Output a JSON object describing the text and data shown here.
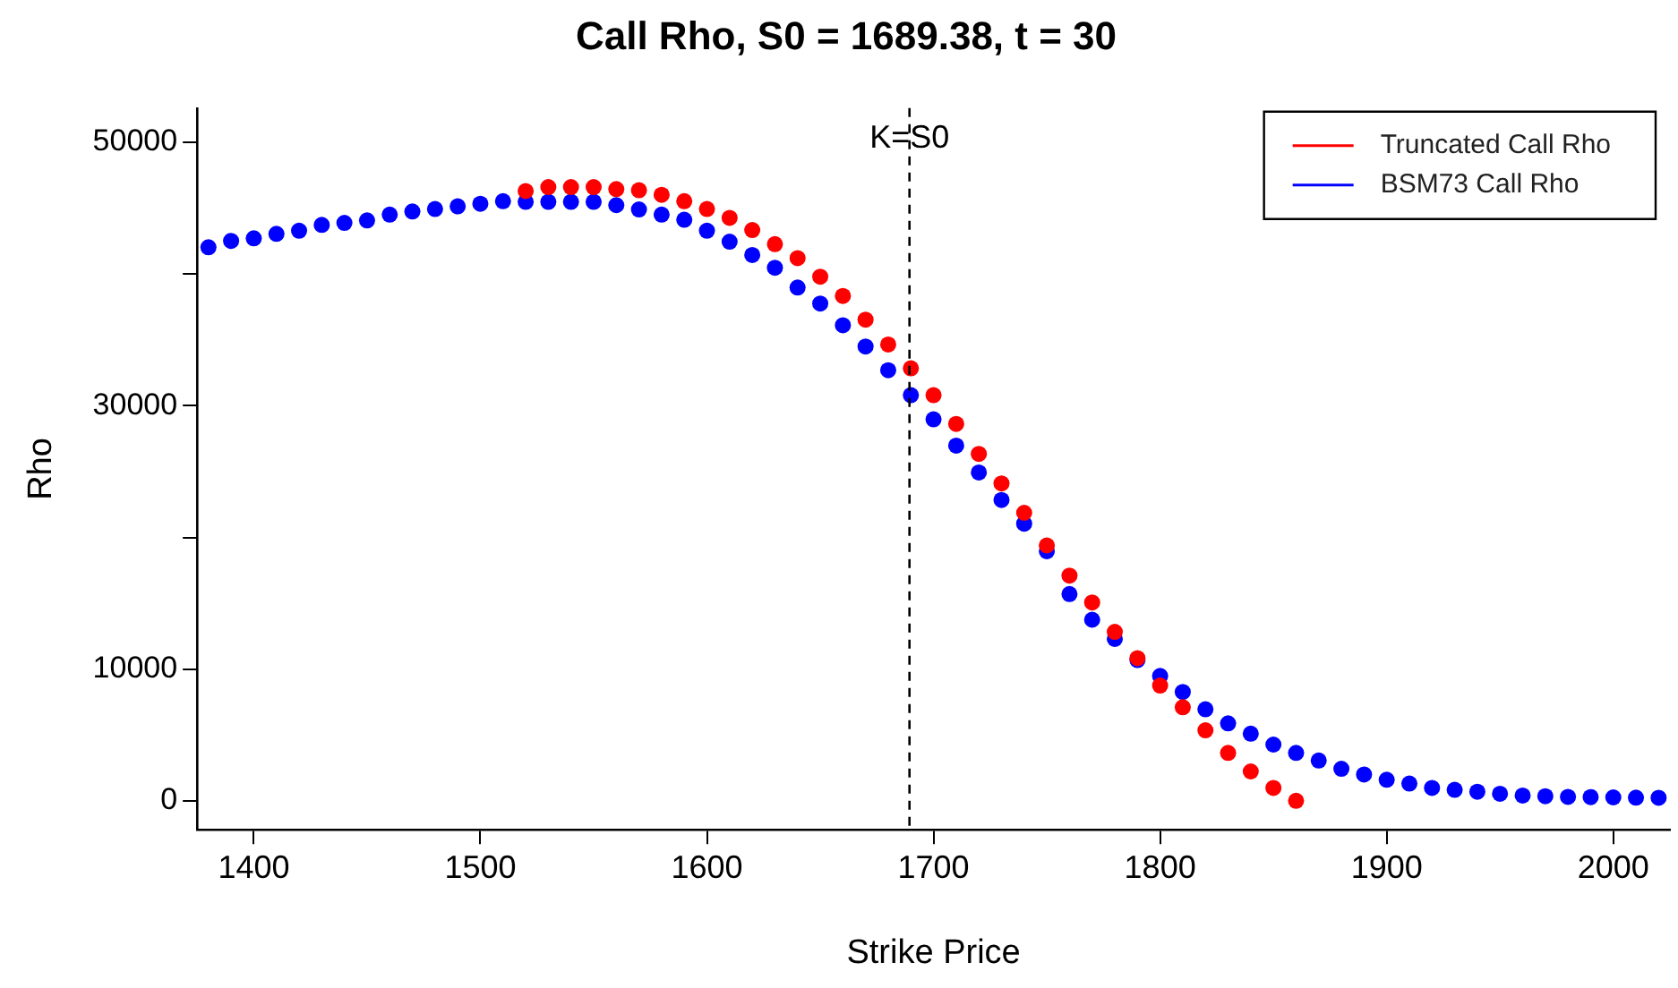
{
  "chart_data": {
    "type": "scatter",
    "title": "Call Rho, S0 = 1689.38, t = 30",
    "xlabel": "Strike Price",
    "ylabel": "Rho",
    "xlim": [
      1375,
      2025
    ],
    "xticks": [
      1400,
      1500,
      1600,
      1700,
      1800,
      1900,
      2000
    ],
    "ylim": [
      -2200,
      52600
    ],
    "yticks": [
      0,
      10000,
      {
        "value": 20000,
        "label": null
      },
      30000,
      {
        "value": 40000,
        "label": null
      },
      50000
    ],
    "grid": false,
    "legend": "top right",
    "marker": "circle",
    "ref_lines": [
      {
        "axis": "x",
        "value": 1689.38,
        "label": "K=S0",
        "color": "#000000",
        "line_style": "dashed"
      }
    ],
    "series": [
      {
        "name": "Truncated Call Rho",
        "color": "#ff0000",
        "x": [
          1520,
          1530,
          1540,
          1550,
          1560,
          1570,
          1580,
          1590,
          1600,
          1610,
          1620,
          1630,
          1640,
          1650,
          1660,
          1670,
          1680,
          1690,
          1700,
          1710,
          1720,
          1730,
          1740,
          1750,
          1760,
          1770,
          1780,
          1790,
          1800,
          1810,
          1820,
          1830,
          1840,
          1850,
          1860
        ],
        "values": [
          46300,
          46600,
          46600,
          46600,
          46450,
          46360,
          46020,
          45530,
          44940,
          44270,
          43340,
          42270,
          41210,
          39800,
          38340,
          36540,
          34650,
          32840,
          30800,
          28620,
          26340,
          24100,
          21870,
          19390,
          17100,
          15060,
          12830,
          10830,
          8750,
          7100,
          5350,
          3640,
          2230,
          980,
          0
        ]
      },
      {
        "name": "BSM73 Call Rho",
        "color": "#0000ff",
        "x": [
          1380,
          1390,
          1400,
          1410,
          1420,
          1430,
          1440,
          1450,
          1460,
          1470,
          1480,
          1490,
          1500,
          1510,
          1520,
          1530,
          1540,
          1550,
          1560,
          1570,
          1580,
          1590,
          1600,
          1610,
          1620,
          1630,
          1640,
          1650,
          1660,
          1670,
          1680,
          1690,
          1700,
          1710,
          1720,
          1730,
          1740,
          1750,
          1760,
          1770,
          1780,
          1790,
          1800,
          1810,
          1820,
          1830,
          1840,
          1850,
          1860,
          1870,
          1880,
          1890,
          1900,
          1910,
          1920,
          1930,
          1940,
          1950,
          1960,
          1970,
          1980,
          1990,
          2000,
          2010,
          2020
        ],
        "values": [
          42030,
          42520,
          42710,
          43050,
          43290,
          43730,
          43880,
          44070,
          44510,
          44750,
          44940,
          45140,
          45340,
          45530,
          45480,
          45480,
          45480,
          45480,
          45230,
          44900,
          44510,
          44120,
          43290,
          42460,
          41450,
          40480,
          38970,
          37760,
          36110,
          34500,
          32700,
          30800,
          28970,
          26970,
          24930,
          22840,
          21040,
          18950,
          15700,
          13750,
          12290,
          10690,
          9480,
          8270,
          6950,
          5880,
          5100,
          4270,
          3640,
          3060,
          2430,
          2000,
          1600,
          1310,
          980,
          830,
          690,
          540,
          400,
          350,
          300,
          280,
          260,
          240,
          230
        ]
      }
    ]
  }
}
